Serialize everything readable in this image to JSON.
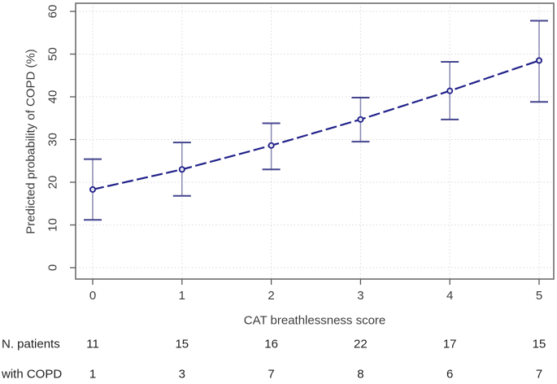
{
  "chart_data": {
    "type": "line",
    "title": "",
    "xlabel": "CAT breathlessness score",
    "ylabel": "Predicted probability of COPD (%)",
    "x": [
      0,
      1,
      2,
      3,
      4,
      5
    ],
    "xticks": [
      0,
      1,
      2,
      3,
      4,
      5
    ],
    "yticks": [
      0,
      10,
      20,
      30,
      40,
      50,
      60
    ],
    "xlim": [
      -0.2,
      5.2
    ],
    "ylim": [
      -2.7,
      61.9
    ],
    "grid": "dotted-both",
    "legend": "none",
    "line_style": "dashed",
    "marker": "open-circle",
    "series": [
      {
        "name": "Predicted probability of COPD",
        "values": [
          18.3,
          23.0,
          28.6,
          34.7,
          41.4,
          48.5
        ],
        "ci_lower": [
          11.2,
          16.8,
          23.0,
          29.5,
          34.7,
          38.8
        ],
        "ci_upper": [
          25.4,
          29.3,
          33.8,
          39.8,
          48.2,
          57.8
        ]
      }
    ],
    "colors": {
      "line": "#22228a",
      "marker_fill": "#e8e8f2",
      "errorbar_stem": "#8888b0",
      "errorbar_cap": "#44448e",
      "grid": "#d8d8d8",
      "frame": "#7e7e7e",
      "tick": "#595959",
      "text": "#3c3c3c"
    }
  },
  "table": {
    "rows": [
      {
        "label": "N. patients",
        "values": [
          "11",
          "15",
          "16",
          "22",
          "17",
          "15"
        ]
      },
      {
        "label": "with COPD",
        "values": [
          "1",
          "3",
          "7",
          "8",
          "6",
          "7"
        ]
      }
    ]
  }
}
